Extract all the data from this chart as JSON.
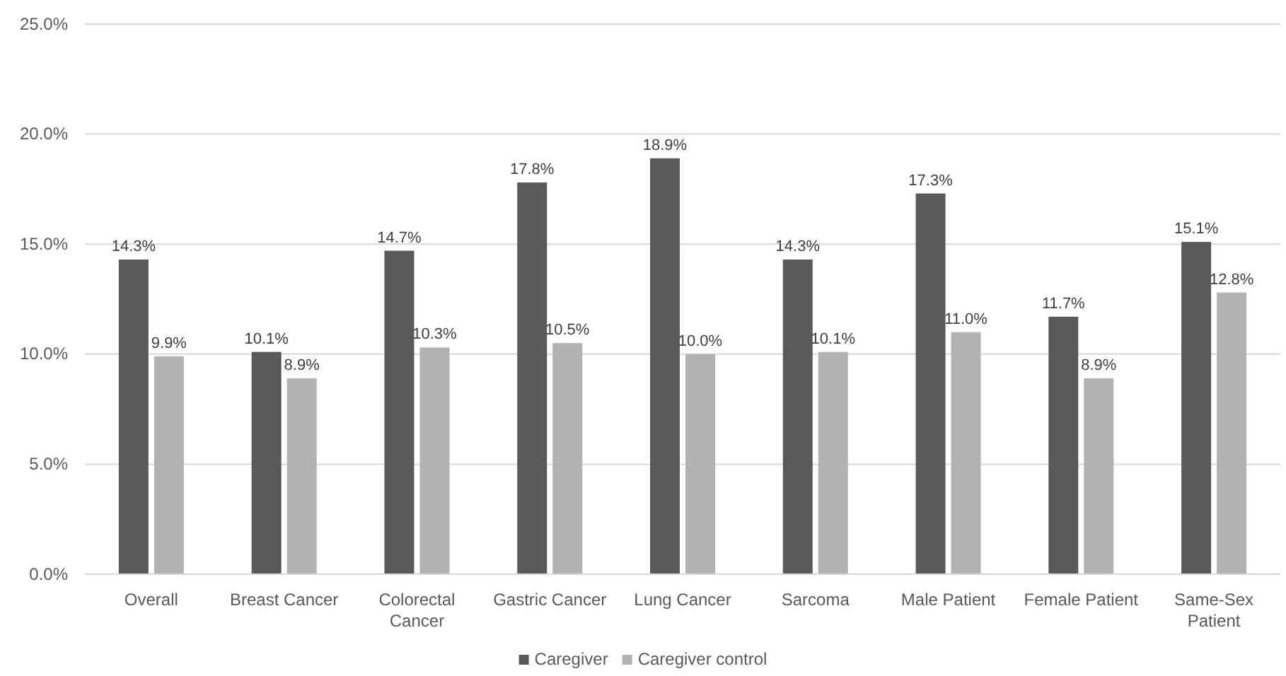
{
  "chart_data": {
    "type": "bar",
    "categories": [
      "Overall",
      "Breast Cancer",
      "Colorectal Cancer",
      "Gastric Cancer",
      "Lung Cancer",
      "Sarcoma",
      "Male Patient",
      "Female Patient",
      "Same-Sex Patient"
    ],
    "series": [
      {
        "name": "Caregiver",
        "color": "#595959",
        "values": [
          14.3,
          10.1,
          14.7,
          17.8,
          18.9,
          14.3,
          17.3,
          11.7,
          15.1
        ],
        "value_labels": [
          "14.3%",
          "10.1%",
          "14.7%",
          "17.8%",
          "18.9%",
          "14.3%",
          "17.3%",
          "11.7%",
          "15.1%"
        ]
      },
      {
        "name": "Caregiver control",
        "color": "#b2b2b2",
        "values": [
          9.9,
          8.9,
          10.3,
          10.5,
          10.0,
          10.1,
          11.0,
          8.9,
          12.8
        ],
        "value_labels": [
          "9.9%",
          "8.9%",
          "10.3%",
          "10.5%",
          "10.0%",
          "10.1%",
          "11.0%",
          "8.9%",
          "12.8%"
        ]
      }
    ],
    "ylim": [
      0,
      25
    ],
    "yticks": [
      {
        "value": 0,
        "label": "0.0%"
      },
      {
        "value": 5,
        "label": "5.0%"
      },
      {
        "value": 10,
        "label": "10.0%"
      },
      {
        "value": 15,
        "label": "15.0%"
      },
      {
        "value": 20,
        "label": "20.0%"
      },
      {
        "value": 25,
        "label": "25.0%"
      }
    ],
    "grid": "y",
    "legend": "bottom"
  }
}
